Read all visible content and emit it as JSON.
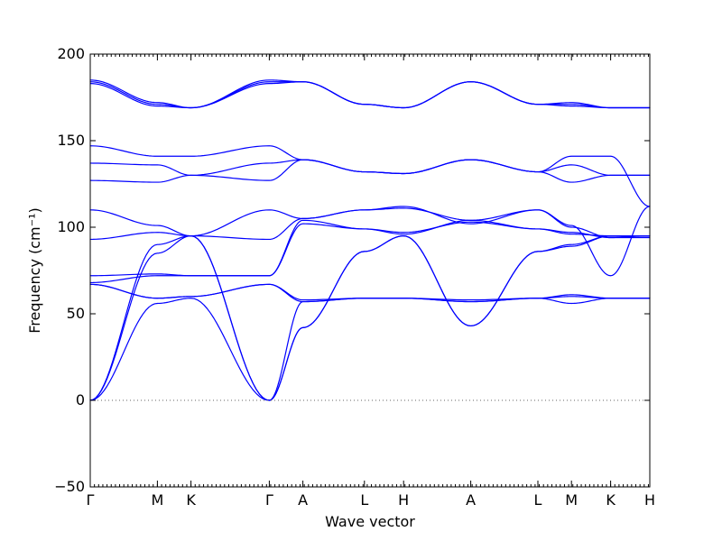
{
  "chart_data": {
    "type": "line",
    "title": "",
    "xlabel": "Wave vector",
    "ylabel": "Frequency (cm⁻¹)",
    "ylim": [
      -50,
      200
    ],
    "yticks": [
      -50,
      0,
      50,
      100,
      150,
      200
    ],
    "x": [
      0,
      0.6,
      0.9,
      1.6,
      1.9,
      2.45,
      2.8,
      3.4,
      4.0,
      4.3,
      4.65,
      5.0
    ],
    "xlim": [
      0,
      5.0
    ],
    "xticks": [
      {
        "label": "Γ",
        "x": 0
      },
      {
        "label": "M",
        "x": 0.6
      },
      {
        "label": "K",
        "x": 0.9
      },
      {
        "label": "Γ",
        "x": 1.6
      },
      {
        "label": "A",
        "x": 1.9
      },
      {
        "label": "L",
        "x": 2.45
      },
      {
        "label": "H",
        "x": 2.8
      },
      {
        "label": "A",
        "x": 3.4
      },
      {
        "label": "L",
        "x": 4.0
      },
      {
        "label": "M",
        "x": 4.3
      },
      {
        "label": "K",
        "x": 4.65
      },
      {
        "label": "H",
        "x": 5.0
      }
    ],
    "grid": false,
    "line_color": "#0000ff",
    "zero_line_color": "#666666",
    "series": [
      {
        "values": [
          0,
          85,
          95,
          0,
          42,
          86,
          95,
          43,
          86,
          90,
          95,
          95
        ]
      },
      {
        "values": [
          0,
          90,
          95,
          0,
          42,
          86,
          95,
          43,
          86,
          89,
          95,
          95
        ]
      },
      {
        "values": [
          0,
          56,
          59,
          0,
          57,
          59,
          59,
          57,
          59,
          56,
          59,
          59
        ]
      },
      {
        "values": [
          67,
          59,
          60,
          67,
          57,
          59,
          59,
          57,
          59,
          60,
          59,
          59
        ]
      },
      {
        "values": [
          67,
          59,
          60,
          67,
          58,
          59,
          59,
          58,
          59,
          61,
          59,
          59
        ]
      },
      {
        "values": [
          68,
          72,
          72,
          72,
          102,
          99,
          97,
          103,
          99,
          96,
          95,
          95
        ]
      },
      {
        "values": [
          72,
          73,
          72,
          72,
          104,
          99,
          96,
          104,
          99,
          97,
          94,
          95
        ]
      },
      {
        "values": [
          93,
          97,
          95,
          93,
          105,
          110,
          111,
          104,
          110,
          100,
          94,
          94
        ]
      },
      {
        "values": [
          110,
          101,
          95,
          110,
          105,
          110,
          112,
          102,
          110,
          101,
          72,
          112
        ]
      },
      {
        "values": [
          127,
          126,
          130,
          127,
          139,
          132,
          131,
          139,
          132,
          126,
          130,
          130
        ]
      },
      {
        "values": [
          137,
          136,
          130,
          137,
          139,
          132,
          131,
          139,
          132,
          136,
          130,
          130
        ]
      },
      {
        "values": [
          147,
          141,
          141,
          147,
          139,
          132,
          131,
          139,
          132,
          141,
          141,
          112
        ]
      },
      {
        "values": [
          183,
          170,
          169,
          183,
          184,
          171,
          169,
          184,
          171,
          170,
          169,
          169
        ]
      },
      {
        "values": [
          184,
          171,
          169,
          184,
          184,
          171,
          169,
          184,
          171,
          171,
          169,
          169
        ]
      },
      {
        "values": [
          185,
          172,
          169,
          185,
          184,
          171,
          169,
          184,
          171,
          172,
          169,
          169
        ]
      }
    ]
  }
}
